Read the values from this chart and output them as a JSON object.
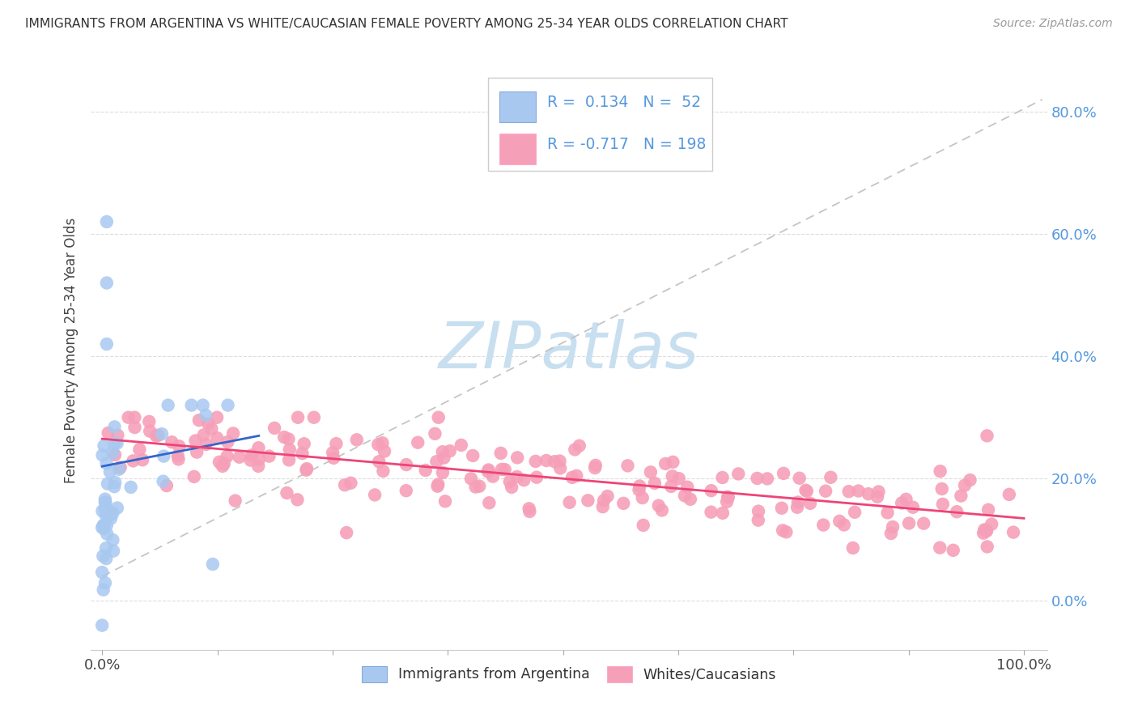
{
  "title": "IMMIGRANTS FROM ARGENTINA VS WHITE/CAUCASIAN FEMALE POVERTY AMONG 25-34 YEAR OLDS CORRELATION CHART",
  "source": "Source: ZipAtlas.com",
  "ylabel": "Female Poverty Among 25-34 Year Olds",
  "blue_R": 0.134,
  "blue_N": 52,
  "pink_R": -0.717,
  "pink_N": 198,
  "blue_color": "#A8C8F0",
  "pink_color": "#F5A0B8",
  "blue_line_color": "#3366CC",
  "pink_line_color": "#EE4477",
  "gray_dash_color": "#BBBBBB",
  "background_color": "#FFFFFF",
  "watermark_color": "#C8DFF0",
  "legend_label_blue": "Immigrants from Argentina",
  "legend_label_pink": "Whites/Caucasians",
  "tick_label_color": "#5599DD",
  "axis_label_color": "#444444",
  "ytick_labels_right": [
    "0.0%",
    "20.0%",
    "40.0%",
    "60.0%",
    "80.0%"
  ],
  "yticks": [
    0.0,
    0.2,
    0.4,
    0.6,
    0.8
  ]
}
